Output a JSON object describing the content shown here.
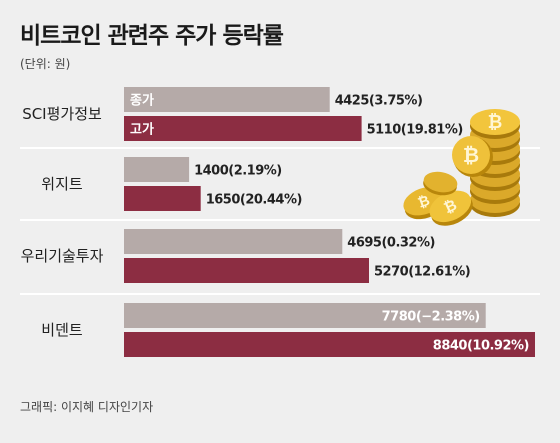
{
  "title": "비트코인 관련주 주가 등락률",
  "unit": "(단위: 원)",
  "credit": "그래픽: 이지혜 디자인기자",
  "colors": {
    "close": "#b5aaa8",
    "high": "#8c2d42",
    "background": "#efefef",
    "separator": "#ffffff",
    "coin": "#e2b22e"
  },
  "icons": [
    "bitcoin-coin-stack-icon",
    "bitcoin-coins-icon"
  ],
  "chart_data": {
    "type": "bar",
    "orientation": "horizontal",
    "categories": [
      "SCI평가정보",
      "위지트",
      "우리기술투자",
      "비덴트"
    ],
    "series": [
      {
        "name": "종가",
        "values": [
          4425,
          1400,
          4695,
          7780
        ],
        "labels": [
          "4425(3.75%)",
          "1400(2.19%)",
          "4695(0.32%)",
          "7780(−2.38%)"
        ]
      },
      {
        "name": "고가",
        "values": [
          5110,
          1650,
          5270,
          8840
        ],
        "labels": [
          "5110(19.81%)",
          "1650(20.44%)",
          "5270(12.61%)",
          "8840(10.92%)"
        ]
      }
    ],
    "xlim": [
      0,
      8840
    ],
    "legend": "inside-first-group",
    "grid": false
  }
}
